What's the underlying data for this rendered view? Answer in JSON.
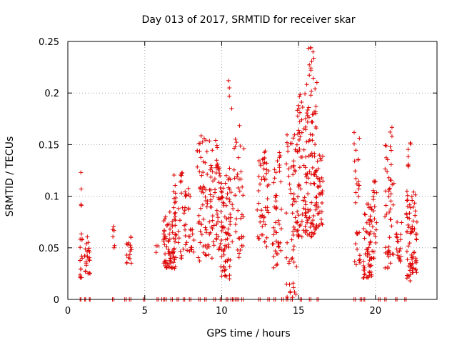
{
  "chart_data": {
    "type": "scatter",
    "title": "Day 013 of 2017, SRMTID for receiver skar",
    "xlabel": "GPS time / hours",
    "ylabel": "SRMTID / TECUs",
    "xlim": [
      0,
      24
    ],
    "ylim": [
      0,
      0.25
    ],
    "x_ticks": [
      0,
      5,
      10,
      15,
      20
    ],
    "x_tick_labels": [
      "0",
      "5",
      "10",
      "15",
      "20"
    ],
    "y_ticks": [
      0,
      0.05,
      0.1,
      0.15,
      0.2,
      0.25
    ],
    "y_tick_labels": [
      "0",
      "0.05",
      "0.1",
      "0.15",
      "0.2",
      "0.25"
    ],
    "grid": true,
    "marker": "+",
    "color": "#dd0000",
    "zero_markers_x": [
      0.8,
      0.85,
      1.1,
      1.15,
      1.4,
      1.45,
      2.9,
      3.0,
      3.7,
      3.8,
      4.0,
      4.1,
      4.9,
      5.0,
      5.8,
      5.9,
      6.1,
      6.2,
      6.3,
      6.4,
      6.7,
      6.8,
      7.1,
      7.2,
      7.5,
      7.6,
      7.9,
      8.0,
      8.5,
      8.6,
      8.9,
      9.0,
      9.5,
      9.6,
      9.9,
      10.0,
      10.3,
      10.4,
      10.6,
      10.7,
      10.8,
      10.9,
      11.0,
      11.1,
      11.3,
      11.4,
      12.4,
      12.5,
      13.0,
      13.1,
      13.4,
      13.5,
      13.9,
      14.0,
      14.2,
      14.3,
      14.5,
      14.6,
      15.1,
      15.2,
      15.7,
      15.8,
      16.2,
      16.3,
      18.6,
      18.7,
      19.0,
      19.1,
      19.2,
      19.3,
      20.2,
      20.3,
      20.6,
      20.7,
      21.3,
      21.4,
      21.9,
      22.0
    ],
    "clusters": [
      {
        "x": [
          0.78,
          0.95
        ],
        "y": [
          0.02,
          0.065
        ],
        "n": 14,
        "extra": [
          [
            0.85,
            0.123
          ],
          [
            0.87,
            0.107
          ],
          [
            0.85,
            0.092
          ],
          [
            0.88,
            0.091
          ]
        ]
      },
      {
        "x": [
          1.05,
          1.45
        ],
        "y": [
          0.025,
          0.065
        ],
        "n": 22
      },
      {
        "x": [
          2.9,
          3.05
        ],
        "y": [
          0.05,
          0.078
        ],
        "n": 6
      },
      {
        "x": [
          3.8,
          4.15
        ],
        "y": [
          0.035,
          0.062
        ],
        "n": 16
      },
      {
        "x": [
          5.7,
          5.9
        ],
        "y": [
          0.045,
          0.06
        ],
        "n": 3
      },
      {
        "x": [
          6.2,
          7.0
        ],
        "y": [
          0.03,
          0.085
        ],
        "n": 70
      },
      {
        "x": [
          6.8,
          7.6
        ],
        "y": [
          0.04,
          0.125
        ],
        "n": 40
      },
      {
        "x": [
          7.6,
          8.2
        ],
        "y": [
          0.045,
          0.11
        ],
        "n": 30
      },
      {
        "x": [
          8.4,
          9.0
        ],
        "y": [
          0.035,
          0.16
        ],
        "n": 45
      },
      {
        "x": [
          9.0,
          9.9
        ],
        "y": [
          0.04,
          0.155
        ],
        "n": 70
      },
      {
        "x": [
          9.9,
          10.6
        ],
        "y": [
          0.02,
          0.12
        ],
        "n": 75,
        "extra": [
          [
            10.45,
            0.212
          ],
          [
            10.5,
            0.205
          ],
          [
            10.5,
            0.197
          ],
          [
            10.65,
            0.185
          ]
        ]
      },
      {
        "x": [
          10.5,
          11.5
        ],
        "y": [
          0.04,
          0.17
        ],
        "n": 45
      },
      {
        "x": [
          12.3,
          13.1
        ],
        "y": [
          0.05,
          0.145
        ],
        "n": 50
      },
      {
        "x": [
          13.3,
          13.9
        ],
        "y": [
          0.03,
          0.15
        ],
        "n": 45
      },
      {
        "x": [
          14.2,
          14.9
        ],
        "y": [
          0.0,
          0.16
        ],
        "n": 60
      },
      {
        "x": [
          14.9,
          15.6
        ],
        "y": [
          0.06,
          0.2
        ],
        "n": 70
      },
      {
        "x": [
          15.5,
          16.2
        ],
        "y": [
          0.06,
          0.245
        ],
        "n": 90
      },
      {
        "x": [
          16.1,
          16.6
        ],
        "y": [
          0.07,
          0.14
        ],
        "n": 35
      },
      {
        "x": [
          18.6,
          19.0
        ],
        "y": [
          0.03,
          0.162
        ],
        "n": 30
      },
      {
        "x": [
          19.2,
          19.8
        ],
        "y": [
          0.02,
          0.095
        ],
        "n": 60
      },
      {
        "x": [
          19.8,
          20.1
        ],
        "y": [
          0.04,
          0.12
        ],
        "n": 20
      },
      {
        "x": [
          20.6,
          21.2
        ],
        "y": [
          0.03,
          0.168
        ],
        "n": 50
      },
      {
        "x": [
          21.3,
          21.7
        ],
        "y": [
          0.035,
          0.075
        ],
        "n": 20
      },
      {
        "x": [
          22.0,
          22.3
        ],
        "y": [
          0.018,
          0.155
        ],
        "n": 40
      },
      {
        "x": [
          22.3,
          22.7
        ],
        "y": [
          0.025,
          0.105
        ],
        "n": 40
      }
    ]
  }
}
